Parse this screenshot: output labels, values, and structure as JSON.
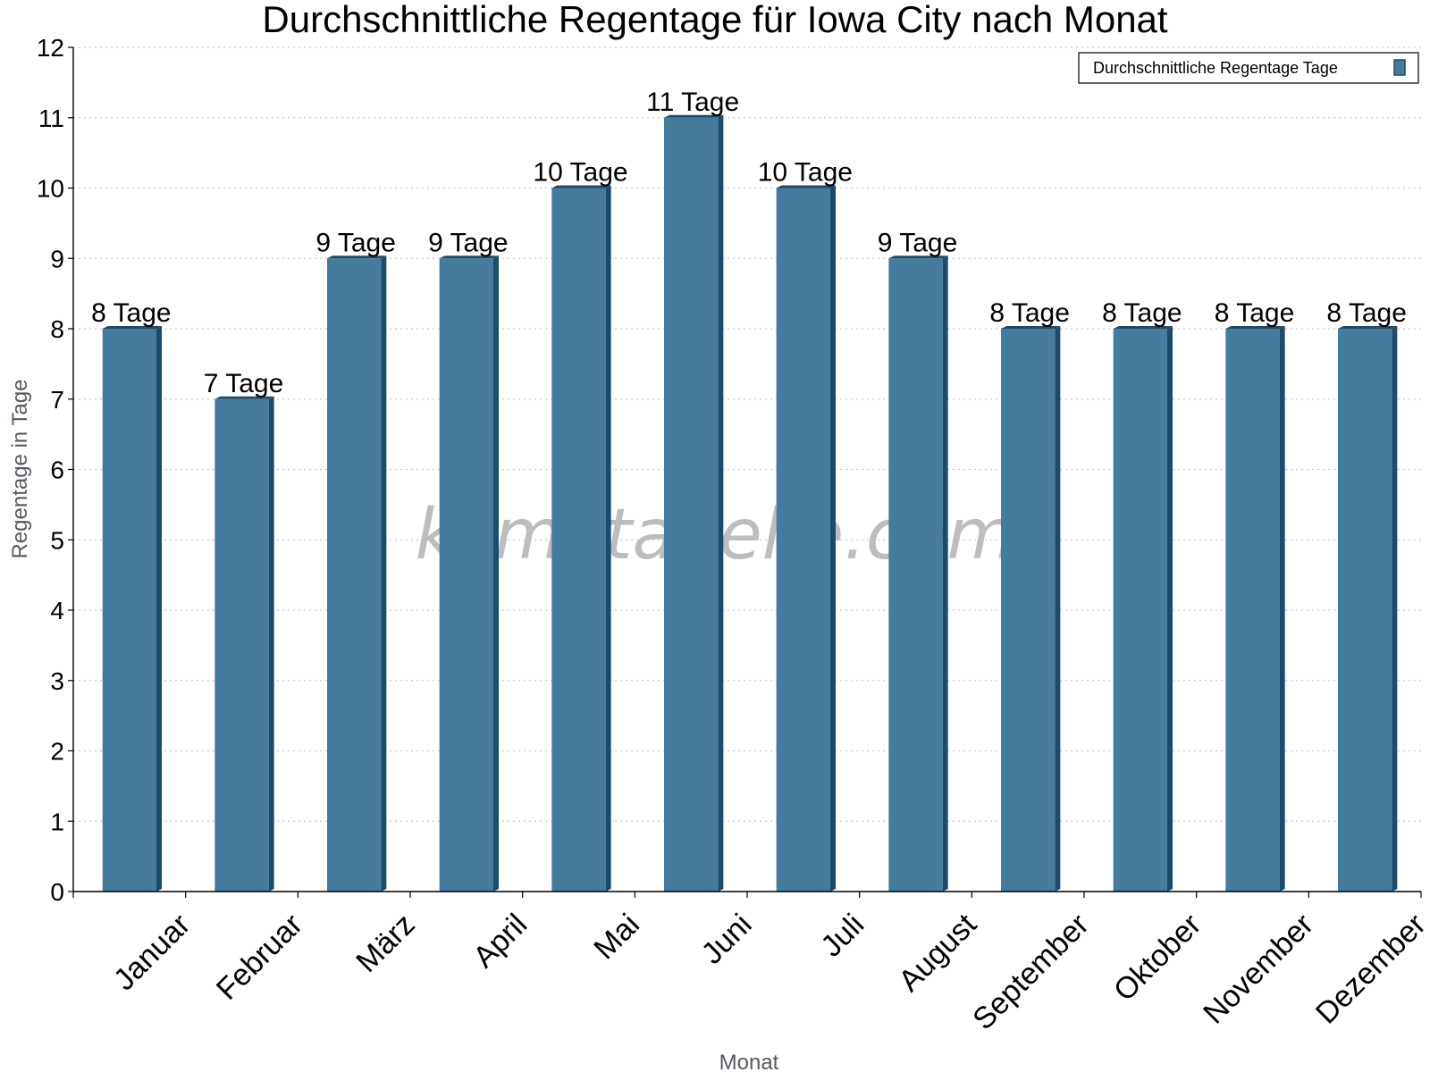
{
  "chart_data": {
    "type": "bar",
    "title": "Durchschnittliche Regentage für Iowa City nach Monat",
    "xlabel": "Monat",
    "ylabel": "Regentage in Tage",
    "ylim": [
      0,
      12
    ],
    "yticks": [
      "0",
      "1",
      "2",
      "3",
      "4",
      "5",
      "6",
      "7",
      "8",
      "9",
      "10",
      "11",
      "12"
    ],
    "grid": true,
    "legend_position": "top-right",
    "categories": [
      "Januar",
      "Februar",
      "März",
      "April",
      "Mai",
      "Juni",
      "Juli",
      "August",
      "September",
      "Oktober",
      "November",
      "Dezember"
    ],
    "series": [
      {
        "name": "Durchschnittliche Regentage Tage",
        "values": [
          8,
          7,
          9,
          9,
          10,
          11,
          10,
          9,
          8,
          8,
          8,
          8
        ],
        "color": "#457b9d",
        "side_color": "#1d4a6b"
      }
    ],
    "data_labels": [
      "8 Tage",
      "7 Tage",
      "9 Tage",
      "9 Tage",
      "10 Tage",
      "11 Tage",
      "10 Tage",
      "9 Tage",
      "8 Tage",
      "8 Tage",
      "8 Tage",
      "8 Tage"
    ]
  },
  "watermark": "klimatabelle.com"
}
